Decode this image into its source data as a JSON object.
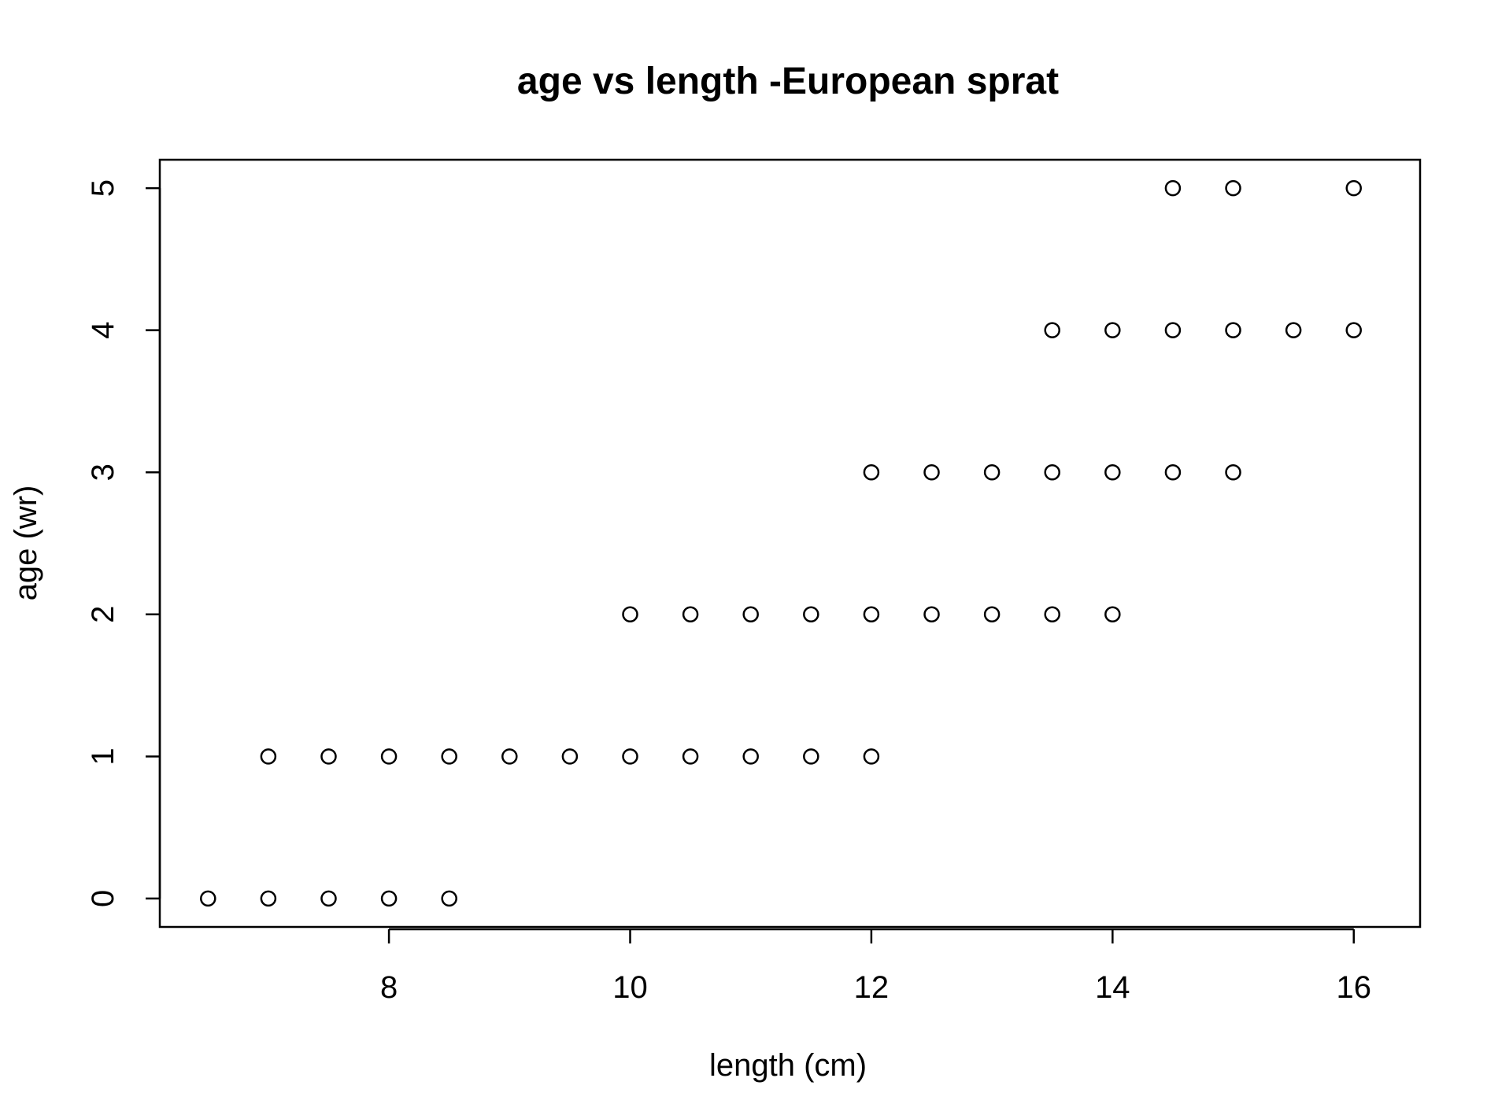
{
  "chart_data": {
    "type": "scatter",
    "title": "age vs length -European sprat",
    "xlabel": "length (cm)",
    "ylabel": "age (wr)",
    "xlim": [
      6.1,
      16.55
    ],
    "ylim": [
      -0.2,
      5.2
    ],
    "xticks": [
      8,
      10,
      12,
      14,
      16
    ],
    "yticks": [
      0,
      1,
      2,
      3,
      4,
      5
    ],
    "grid": false,
    "marker": "open-circle",
    "colors": {
      "points": "#000000",
      "background": "#ffffff"
    },
    "series": [
      {
        "x": [
          6.5,
          7,
          7.5,
          8,
          8.5,
          7,
          7.5,
          8,
          8.5,
          9,
          9.5,
          10,
          10.5,
          11,
          11.5,
          12,
          10,
          10.5,
          11,
          11.5,
          12,
          12.5,
          13,
          13.5,
          14,
          12,
          12.5,
          13,
          13.5,
          14,
          14.5,
          15,
          13.5,
          14,
          14.5,
          15,
          15.5,
          16,
          14.5,
          15,
          16
        ],
        "y": [
          0,
          0,
          0,
          0,
          0,
          1,
          1,
          1,
          1,
          1,
          1,
          1,
          1,
          1,
          1,
          1,
          2,
          2,
          2,
          2,
          2,
          2,
          2,
          2,
          2,
          3,
          3,
          3,
          3,
          3,
          3,
          3,
          4,
          4,
          4,
          4,
          4,
          4,
          5,
          5,
          5
        ]
      }
    ]
  }
}
